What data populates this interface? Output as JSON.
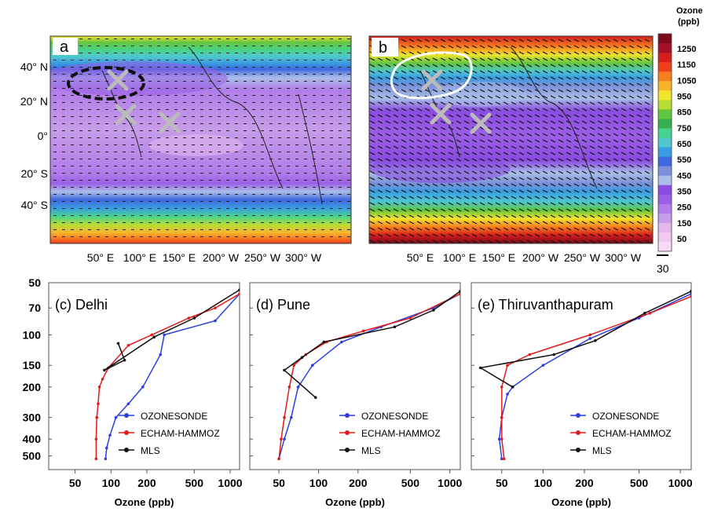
{
  "colorbar": {
    "title_line1": "Ozone",
    "title_line2": "(ppb)",
    "ticks": [
      "1250",
      "1150",
      "1050",
      "950",
      "850",
      "750",
      "650",
      "550",
      "450",
      "350",
      "250",
      "150",
      "50"
    ],
    "colors": [
      "#7a0a1c",
      "#a3122a",
      "#d41e1e",
      "#ee4018",
      "#f77f1f",
      "#f9b32b",
      "#f2e52c",
      "#b7dd34",
      "#63c53e",
      "#34b04c",
      "#47d38f",
      "#4fc7cf",
      "#3a9de1",
      "#3f67df",
      "#7b90d8",
      "#a9bee8",
      "#8a4ce0",
      "#9b5fe6",
      "#b07de9",
      "#c79ce9",
      "#e3b6ee",
      "#f1c9f0",
      "#f7daf6"
    ],
    "scale_label": "30"
  },
  "maps": [
    {
      "label": "a",
      "lat_labels": [
        "40° N",
        "20° N",
        "0°",
        "20° S",
        "40° S"
      ],
      "lon_labels": [
        "50° E",
        "100° E",
        "150° E",
        "200° W",
        "250° W",
        "300° W"
      ]
    },
    {
      "label": "b",
      "lon_labels": [
        "50° E",
        "100° E",
        "150° E",
        "200° W",
        "250° W",
        "300° W"
      ]
    }
  ],
  "chart_data": [
    {
      "type": "line",
      "title": "(c) Delhi",
      "xlabel": "Ozone (ppb)",
      "x_scale": "log",
      "y_scale": "log, inverted",
      "xlim": [
        30,
        1200
      ],
      "ylim": [
        600,
        50
      ],
      "x_ticks": [
        50,
        100,
        200,
        500,
        1000
      ],
      "y_ticks": [
        50,
        70,
        100,
        150,
        200,
        300,
        400,
        500
      ],
      "legend_position": "lower-right",
      "series": [
        {
          "name": "OZONESONDE",
          "color": "#2a3fe0",
          "points": [
            [
              90,
              520
            ],
            [
              92,
              450
            ],
            [
              98,
              380
            ],
            [
              110,
              300
            ],
            [
              140,
              250
            ],
            [
              185,
              200
            ],
            [
              260,
              130
            ],
            [
              280,
              100
            ],
            [
              750,
              83
            ],
            [
              1200,
              58
            ]
          ]
        },
        {
          "name": "ECHAM-HAMMOZ",
          "color": "#e21b1b",
          "points": [
            [
              75,
              520
            ],
            [
              75,
              400
            ],
            [
              76,
              300
            ],
            [
              78,
              250
            ],
            [
              80,
              200
            ],
            [
              85,
              180
            ],
            [
              95,
              155
            ],
            [
              140,
              115
            ],
            [
              220,
              100
            ],
            [
              450,
              80
            ],
            [
              750,
              70
            ],
            [
              1200,
              58
            ]
          ]
        },
        {
          "name": "MLS",
          "color": "#111111",
          "points": [
            [
              115,
              112
            ],
            [
              130,
              140
            ],
            [
              88,
              160
            ],
            [
              230,
              103
            ],
            [
              500,
              80
            ],
            [
              1200,
              55
            ]
          ]
        }
      ]
    },
    {
      "type": "line",
      "title": "(d) Pune",
      "xlabel": "Ozone (ppb)",
      "x_scale": "log",
      "y_scale": "log, inverted",
      "xlim": [
        30,
        1200
      ],
      "legend_position": "lower-right",
      "series": [
        {
          "name": "OZONESONDE",
          "color": "#2a3fe0",
          "points": [
            [
              50,
              520
            ],
            [
              55,
              400
            ],
            [
              62,
              300
            ],
            [
              70,
              200
            ],
            [
              90,
              150
            ],
            [
              150,
              110
            ],
            [
              300,
              90
            ],
            [
              750,
              70
            ],
            [
              1200,
              58
            ]
          ]
        },
        {
          "name": "ECHAM-HAMMOZ",
          "color": "#e21b1b",
          "points": [
            [
              50,
              520
            ],
            [
              52,
              400
            ],
            [
              55,
              300
            ],
            [
              60,
              200
            ],
            [
              65,
              150
            ],
            [
              80,
              130
            ],
            [
              115,
              110
            ],
            [
              220,
              95
            ],
            [
              500,
              80
            ],
            [
              1200,
              58
            ]
          ]
        },
        {
          "name": "MLS",
          "color": "#111111",
          "points": [
            [
              95,
              230
            ],
            [
              55,
              160
            ],
            [
              75,
              135
            ],
            [
              110,
              110
            ],
            [
              380,
              90
            ],
            [
              750,
              72
            ],
            [
              1200,
              56
            ]
          ]
        }
      ]
    },
    {
      "type": "line",
      "title": "(e) Thiruvanthapuram",
      "xlabel": "Ozone (ppb)",
      "x_scale": "log",
      "y_scale": "log, inverted",
      "xlim": [
        30,
        1200
      ],
      "legend_position": "lower-right",
      "series": [
        {
          "name": "OZONESONDE",
          "color": "#2a3fe0",
          "points": [
            [
              50,
              520
            ],
            [
              48,
              400
            ],
            [
              50,
              300
            ],
            [
              55,
              220
            ],
            [
              60,
              200
            ],
            [
              100,
              150
            ],
            [
              220,
              105
            ],
            [
              500,
              80
            ],
            [
              1200,
              58
            ]
          ]
        },
        {
          "name": "ECHAM-HAMMOZ",
          "color": "#e21b1b",
          "points": [
            [
              52,
              520
            ],
            [
              50,
              400
            ],
            [
              50,
              300
            ],
            [
              50,
              200
            ],
            [
              55,
              150
            ],
            [
              80,
              130
            ],
            [
              220,
              100
            ],
            [
              600,
              75
            ],
            [
              1200,
              60
            ]
          ]
        },
        {
          "name": "MLS",
          "color": "#111111",
          "points": [
            [
              60,
              200
            ],
            [
              35,
              155
            ],
            [
              120,
              130
            ],
            [
              240,
              108
            ],
            [
              550,
              75
            ],
            [
              1200,
              56
            ]
          ]
        }
      ]
    }
  ]
}
